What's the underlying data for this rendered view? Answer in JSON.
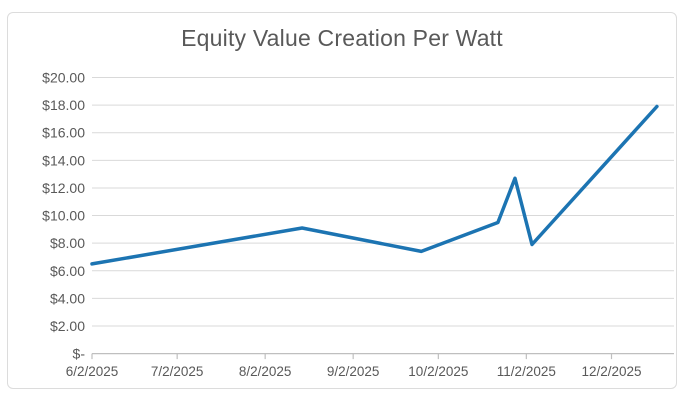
{
  "chart_data": {
    "type": "line",
    "title": "Equity Value Creation Per Watt",
    "xlabel": "",
    "ylabel": "",
    "grid": true,
    "legend_position": "none",
    "line_color": "#1c74b2",
    "ylim": [
      0,
      20
    ],
    "y_step": 2,
    "points": [
      {
        "date": "6/2/2025",
        "value": 6.5
      },
      {
        "date": "8/15/2025",
        "value": 9.1
      },
      {
        "date": "9/26/2025",
        "value": 7.4
      },
      {
        "date": "10/23/2025",
        "value": 9.5
      },
      {
        "date": "10/29/2025",
        "value": 12.7
      },
      {
        "date": "11/4/2025",
        "value": 7.9
      },
      {
        "date": "12/18/2025",
        "value": 17.9
      }
    ],
    "x_tick_labels": [
      "6/2/2025",
      "7/2/2025",
      "8/2/2025",
      "9/2/2025",
      "10/2/2025",
      "11/2/2025",
      "12/2/2025"
    ],
    "y_ticks": [
      {
        "value": 0,
        "label": "$-"
      },
      {
        "value": 2,
        "label": "$2.00"
      },
      {
        "value": 4,
        "label": "$4.00"
      },
      {
        "value": 6,
        "label": "$6.00"
      },
      {
        "value": 8,
        "label": "$8.00"
      },
      {
        "value": 10,
        "label": "$10.00"
      },
      {
        "value": 12,
        "label": "$12.00"
      },
      {
        "value": 14,
        "label": "$14.00"
      },
      {
        "value": 16,
        "label": "$16.00"
      },
      {
        "value": 18,
        "label": "$18.00"
      },
      {
        "value": 20,
        "label": "$20.00"
      }
    ]
  },
  "colors": {
    "background": "#ffffff",
    "chart_border": "#dcdcdc",
    "gridline": "#d9d9d9",
    "axis_line": "#bfbfbf",
    "title_text": "#595959",
    "tick_text": "#595959"
  }
}
